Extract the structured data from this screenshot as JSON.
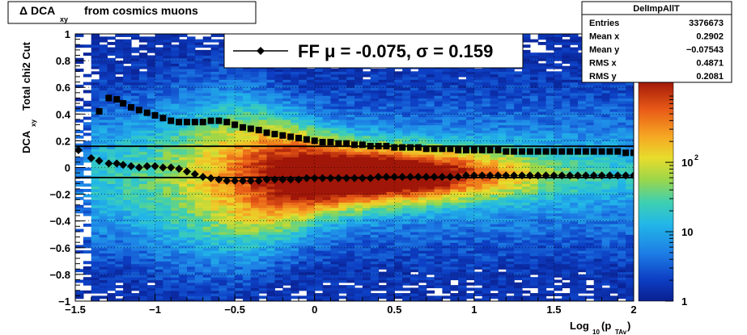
{
  "chart_data": {
    "type": "heatmap",
    "title": {
      "prefix": "Δ DCA",
      "sub": "xy",
      "suffix": "from cosmics muons"
    },
    "xlabel": {
      "main": "Log",
      "sub1": "10",
      "paren": "(p",
      "sub2": "TAv",
      "close": ")"
    },
    "ylabel": {
      "main": "DCA",
      "sub": "xy",
      "suffix": "Total chi2 Cut"
    },
    "xlim": [
      -1.5,
      2.0
    ],
    "ylim": [
      -1.0,
      1.0
    ],
    "x_ticks": [
      {
        "v": -1.5,
        "label": "−1.5"
      },
      {
        "v": -1.0,
        "label": "−1"
      },
      {
        "v": -0.5,
        "label": "−0.5"
      },
      {
        "v": 0.0,
        "label": "0"
      },
      {
        "v": 0.5,
        "label": "0.5"
      },
      {
        "v": 1.0,
        "label": "1"
      },
      {
        "v": 1.5,
        "label": "1.5"
      },
      {
        "v": 2.0,
        "label": "2"
      }
    ],
    "y_ticks": [
      {
        "v": 1.0,
        "label": "1"
      },
      {
        "v": 0.8,
        "label": "0.8"
      },
      {
        "v": 0.6,
        "label": "0.6"
      },
      {
        "v": 0.4,
        "label": "0.4"
      },
      {
        "v": 0.2,
        "label": "0.2"
      },
      {
        "v": 0.0,
        "label": "0"
      },
      {
        "v": -0.2,
        "label": "−0.2"
      },
      {
        "v": -0.4,
        "label": "−0.4"
      },
      {
        "v": -0.6,
        "label": "−0.6"
      },
      {
        "v": -0.8,
        "label": "−0.8"
      },
      {
        "v": -1.0,
        "label": "−1"
      }
    ],
    "grid": true,
    "z_scale": "log",
    "z_ticks": [
      {
        "v": 1,
        "label": "1",
        "sup": ""
      },
      {
        "v": 10,
        "label": "10",
        "sup": ""
      },
      {
        "v": 100,
        "label": "10",
        "sup": "2"
      }
    ],
    "z_max": 1500,
    "legend": {
      "label": "FF μ = -0.075, σ =   0.159",
      "position": "top-center"
    },
    "stats_box": {
      "title": "DelImpAllT",
      "rows": [
        {
          "label": "Entries",
          "value": "3376673"
        },
        {
          "label": "Mean x",
          "value": "0.2902"
        },
        {
          "label": "Mean y",
          "value": "−0.07543"
        },
        {
          "label": "RMS x",
          "value": "0.4871"
        },
        {
          "label": "RMS y",
          "value": "0.2081"
        }
      ]
    },
    "lines": [
      {
        "name": "",
        "y": 0.159
      },
      {
        "name": "",
        "y": -0.075
      }
    ],
    "series": [
      {
        "marker": "square",
        "x": [
          -1.35,
          -1.29,
          -1.24,
          -1.2,
          -1.15,
          -1.1,
          -1.05,
          -1.0,
          -0.95,
          -0.9,
          -0.85,
          -0.8,
          -0.75,
          -0.7,
          -0.65,
          -0.6,
          -0.55,
          -0.5,
          -0.45,
          -0.4,
          -0.35,
          -0.3,
          -0.25,
          -0.2,
          -0.15,
          -0.1,
          -0.05,
          0.0,
          0.05,
          0.1,
          0.15,
          0.2,
          0.25,
          0.3,
          0.35,
          0.4,
          0.45,
          0.5,
          0.55,
          0.6,
          0.65,
          0.7,
          0.75,
          0.8,
          0.85,
          0.9,
          0.95,
          1.0,
          1.05,
          1.1,
          1.15,
          1.2,
          1.25,
          1.3,
          1.35,
          1.4,
          1.45,
          1.5,
          1.55,
          1.6,
          1.65,
          1.7,
          1.75,
          1.8,
          1.85,
          1.9,
          1.95,
          2.0
        ],
        "y": [
          0.42,
          0.52,
          0.51,
          0.48,
          0.45,
          0.43,
          0.41,
          0.39,
          0.37,
          0.35,
          0.34,
          0.34,
          0.34,
          0.34,
          0.35,
          0.35,
          0.34,
          0.32,
          0.3,
          0.29,
          0.28,
          0.26,
          0.25,
          0.24,
          0.23,
          0.22,
          0.21,
          0.2,
          0.19,
          0.19,
          0.18,
          0.18,
          0.17,
          0.17,
          0.16,
          0.16,
          0.16,
          0.15,
          0.15,
          0.15,
          0.15,
          0.14,
          0.14,
          0.14,
          0.14,
          0.13,
          0.13,
          0.13,
          0.13,
          0.13,
          0.13,
          0.12,
          0.12,
          0.12,
          0.12,
          0.12,
          0.12,
          0.12,
          0.12,
          0.12,
          0.12,
          0.12,
          0.12,
          0.12,
          0.12,
          0.12,
          0.11,
          0.11
        ]
      },
      {
        "marker": "diamond",
        "x": [
          -1.48,
          -1.4,
          -1.35,
          -1.29,
          -1.24,
          -1.2,
          -1.15,
          -1.1,
          -1.05,
          -1.0,
          -0.95,
          -0.9,
          -0.85,
          -0.8,
          -0.75,
          -0.7,
          -0.65,
          -0.6,
          -0.55,
          -0.5,
          -0.45,
          -0.4,
          -0.35,
          -0.3,
          -0.25,
          -0.2,
          -0.15,
          -0.1,
          -0.05,
          0.0,
          0.05,
          0.1,
          0.15,
          0.2,
          0.25,
          0.3,
          0.35,
          0.4,
          0.45,
          0.5,
          0.55,
          0.6,
          0.65,
          0.7,
          0.75,
          0.8,
          0.85,
          0.9,
          0.95,
          1.0,
          1.05,
          1.1,
          1.15,
          1.2,
          1.25,
          1.3,
          1.35,
          1.4,
          1.45,
          1.5,
          1.55,
          1.6,
          1.65,
          1.7,
          1.75,
          1.8,
          1.85,
          1.9,
          1.95,
          2.0
        ],
        "y": [
          0.13,
          0.07,
          0.05,
          0.03,
          0.03,
          0.02,
          0.01,
          0.0,
          0.01,
          0.01,
          0.0,
          0.0,
          -0.01,
          -0.03,
          -0.05,
          -0.07,
          -0.08,
          -0.09,
          -0.1,
          -0.1,
          -0.1,
          -0.1,
          -0.1,
          -0.09,
          -0.09,
          -0.09,
          -0.09,
          -0.09,
          -0.08,
          -0.08,
          -0.08,
          -0.08,
          -0.08,
          -0.08,
          -0.08,
          -0.08,
          -0.08,
          -0.07,
          -0.07,
          -0.07,
          -0.07,
          -0.07,
          -0.07,
          -0.07,
          -0.07,
          -0.07,
          -0.07,
          -0.07,
          -0.06,
          -0.06,
          -0.06,
          -0.06,
          -0.06,
          -0.06,
          -0.06,
          -0.06,
          -0.06,
          -0.06,
          -0.06,
          -0.06,
          -0.06,
          -0.06,
          -0.06,
          -0.06,
          -0.06,
          -0.06,
          -0.06,
          -0.06,
          -0.06,
          -0.06
        ]
      }
    ]
  }
}
